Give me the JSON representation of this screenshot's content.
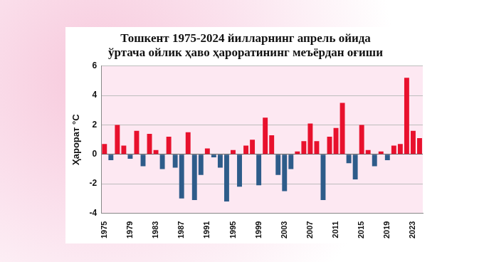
{
  "chart_data": {
    "type": "bar",
    "title": [
      "Тошкент 1975-2024 йилларнинг апрель ойида",
      "ўртача ойлик ҳаво ҳароратининг меъёрдан оғиши"
    ],
    "y_label": "Ҳарорат °С",
    "categories": [
      "1975",
      null,
      null,
      null,
      "1979",
      null,
      null,
      null,
      "1983",
      null,
      null,
      null,
      "1987",
      null,
      null,
      null,
      "1991",
      null,
      null,
      null,
      "1995",
      null,
      null,
      null,
      "1999",
      null,
      null,
      null,
      "2003",
      null,
      null,
      null,
      "2007",
      null,
      null,
      null,
      "2011",
      null,
      null,
      null,
      "2015",
      null,
      null,
      null,
      "2019",
      null,
      null,
      null,
      "2023",
      null
    ],
    "values": [
      0.7,
      -0.4,
      2.0,
      0.6,
      -0.3,
      1.6,
      -0.8,
      1.4,
      0.3,
      -1.0,
      1.2,
      -0.9,
      -3.0,
      1.5,
      -3.1,
      -1.4,
      0.4,
      -0.2,
      -0.9,
      -3.2,
      0.3,
      -2.2,
      0.6,
      1.0,
      -2.1,
      2.5,
      1.3,
      -1.4,
      -2.5,
      -1.0,
      0.2,
      0.9,
      2.1,
      0.9,
      -3.1,
      1.2,
      1.8,
      3.5,
      -0.6,
      -1.7,
      2.0,
      0.3,
      -0.8,
      0.2,
      -0.4,
      0.6,
      0.7,
      5.2,
      1.6,
      1.1
    ],
    "colors": [
      "#e8112d",
      "#2e5c8a",
      "#e8112d",
      "#e8112d",
      "#2e5c8a",
      "#e8112d",
      "#2e5c8a",
      "#e8112d",
      "#e8112d",
      "#2e5c8a",
      "#e8112d",
      "#2e5c8a",
      "#2e5c8a",
      "#e8112d",
      "#2e5c8a",
      "#2e5c8a",
      "#e8112d",
      "#2e5c8a",
      "#2e5c8a",
      "#2e5c8a",
      "#e8112d",
      "#2e5c8a",
      "#e8112d",
      "#e8112d",
      "#2e5c8a",
      "#e8112d",
      "#e8112d",
      "#2e5c8a",
      "#2e5c8a",
      "#2e5c8a",
      "#e8112d",
      "#e8112d",
      "#e8112d",
      "#e8112d",
      "#2e5c8a",
      "#e8112d",
      "#e8112d",
      "#e8112d",
      "#2e5c8a",
      "#2e5c8a",
      "#e8112d",
      "#e8112d",
      "#2e5c8a",
      "#e8112d",
      "#2e5c8a",
      "#e8112d",
      "#e8112d",
      "#e8112d",
      "#e8112d",
      "#e8112d"
    ],
    "ylim": [
      -4,
      6
    ],
    "yticks": [
      -4,
      -2,
      0,
      2,
      4,
      6
    ],
    "grid": true
  }
}
